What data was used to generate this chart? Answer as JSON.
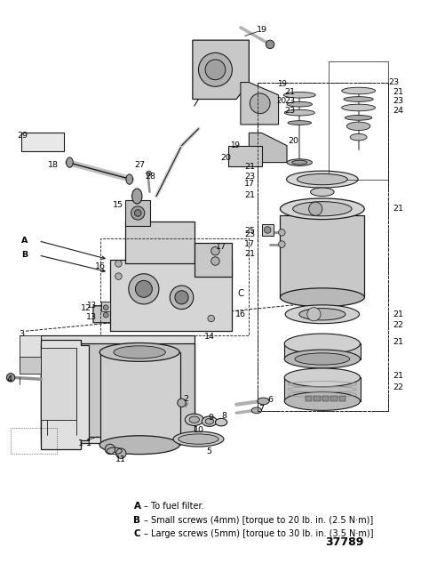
{
  "bg_color": "#ffffff",
  "line_color": "#1a1a1a",
  "text_color": "#000000",
  "fig_width": 4.74,
  "fig_height": 6.43,
  "dpi": 100,
  "legend_lines": [
    [
      "A",
      "To fuel filter."
    ],
    [
      "B",
      "Small screws (4mm) [torque to 20 lb. in. (2.5 N·m)]"
    ],
    [
      "C",
      "Large screws (5mm) [torque to 30 lb. in. (3.5 N·m)]"
    ]
  ],
  "part_number": "37789"
}
